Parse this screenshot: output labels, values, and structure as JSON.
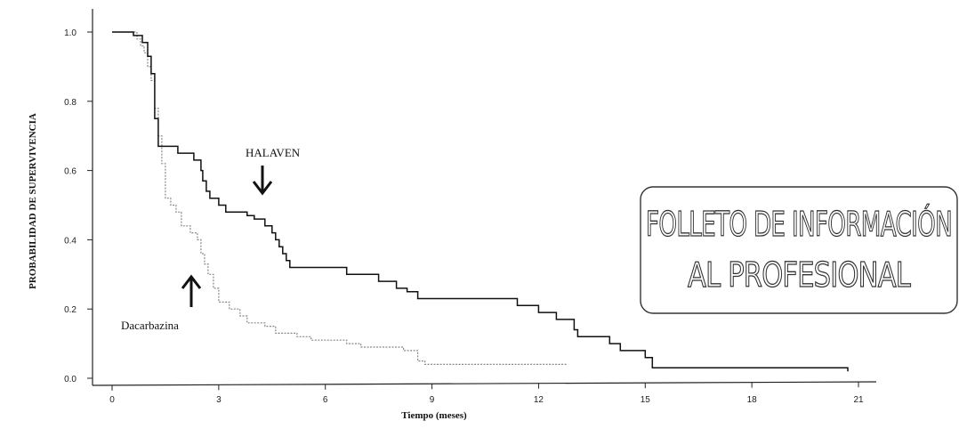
{
  "chart_data": {
    "type": "line",
    "xlabel": "Tiempo (meses)",
    "ylabel": "PROBABILIDAD DE SUPERVIVENCIA",
    "xlim": [
      0,
      21
    ],
    "ylim": [
      0,
      1
    ],
    "x_ticks": [
      0,
      3,
      6,
      9,
      12,
      15,
      18,
      21
    ],
    "y_ticks": [
      0.0,
      0.2,
      0.4,
      0.6,
      0.8,
      1.0
    ],
    "x_tick_labels": [
      "0",
      "3",
      "6",
      "9",
      "12",
      "15",
      "18",
      "21"
    ],
    "y_tick_labels": [
      "0.0",
      "0.2",
      "0.4",
      "0.6",
      "0.8",
      "1.0"
    ],
    "grid": false,
    "step": true,
    "series": [
      {
        "name": "HALAVEN",
        "color": "#111111",
        "style": "solid",
        "points": [
          [
            0,
            1.0
          ],
          [
            0.6,
            1.0
          ],
          [
            0.6,
            0.99
          ],
          [
            0.85,
            0.99
          ],
          [
            0.85,
            0.97
          ],
          [
            1.0,
            0.97
          ],
          [
            1.0,
            0.93
          ],
          [
            1.1,
            0.93
          ],
          [
            1.1,
            0.88
          ],
          [
            1.2,
            0.88
          ],
          [
            1.2,
            0.75
          ],
          [
            1.3,
            0.75
          ],
          [
            1.3,
            0.67
          ],
          [
            1.85,
            0.67
          ],
          [
            1.85,
            0.65
          ],
          [
            2.3,
            0.65
          ],
          [
            2.3,
            0.63
          ],
          [
            2.5,
            0.63
          ],
          [
            2.5,
            0.6
          ],
          [
            2.55,
            0.6
          ],
          [
            2.55,
            0.57
          ],
          [
            2.65,
            0.57
          ],
          [
            2.65,
            0.54
          ],
          [
            2.75,
            0.54
          ],
          [
            2.75,
            0.52
          ],
          [
            3.0,
            0.52
          ],
          [
            3.0,
            0.5
          ],
          [
            3.2,
            0.5
          ],
          [
            3.2,
            0.48
          ],
          [
            3.8,
            0.48
          ],
          [
            3.8,
            0.47
          ],
          [
            4.0,
            0.47
          ],
          [
            4.0,
            0.46
          ],
          [
            4.3,
            0.46
          ],
          [
            4.3,
            0.44
          ],
          [
            4.5,
            0.44
          ],
          [
            4.5,
            0.42
          ],
          [
            4.6,
            0.42
          ],
          [
            4.6,
            0.4
          ],
          [
            4.7,
            0.4
          ],
          [
            4.7,
            0.38
          ],
          [
            4.8,
            0.38
          ],
          [
            4.8,
            0.36
          ],
          [
            4.9,
            0.36
          ],
          [
            4.9,
            0.34
          ],
          [
            5.0,
            0.34
          ],
          [
            5.0,
            0.32
          ],
          [
            6.6,
            0.32
          ],
          [
            6.6,
            0.3
          ],
          [
            7.5,
            0.3
          ],
          [
            7.5,
            0.28
          ],
          [
            8.0,
            0.28
          ],
          [
            8.0,
            0.26
          ],
          [
            8.3,
            0.26
          ],
          [
            8.3,
            0.25
          ],
          [
            8.6,
            0.25
          ],
          [
            8.6,
            0.23
          ],
          [
            11.4,
            0.23
          ],
          [
            11.4,
            0.21
          ],
          [
            12.0,
            0.21
          ],
          [
            12.0,
            0.19
          ],
          [
            12.5,
            0.19
          ],
          [
            12.5,
            0.17
          ],
          [
            13.0,
            0.17
          ],
          [
            13.0,
            0.14
          ],
          [
            13.1,
            0.14
          ],
          [
            13.1,
            0.12
          ],
          [
            14.0,
            0.12
          ],
          [
            14.0,
            0.1
          ],
          [
            14.3,
            0.1
          ],
          [
            14.3,
            0.08
          ],
          [
            15.0,
            0.08
          ],
          [
            15.0,
            0.06
          ],
          [
            15.2,
            0.06
          ],
          [
            15.2,
            0.03
          ],
          [
            20.7,
            0.03
          ],
          [
            20.7,
            0.02
          ]
        ]
      },
      {
        "name": "Dacarbazina",
        "color": "#888888",
        "style": "dotted",
        "points": [
          [
            0,
            1.0
          ],
          [
            0.7,
            1.0
          ],
          [
            0.7,
            0.98
          ],
          [
            0.8,
            0.98
          ],
          [
            0.8,
            0.96
          ],
          [
            0.9,
            0.96
          ],
          [
            0.9,
            0.94
          ],
          [
            1.0,
            0.94
          ],
          [
            1.0,
            0.9
          ],
          [
            1.1,
            0.9
          ],
          [
            1.1,
            0.86
          ],
          [
            1.2,
            0.86
          ],
          [
            1.2,
            0.78
          ],
          [
            1.3,
            0.78
          ],
          [
            1.3,
            0.7
          ],
          [
            1.4,
            0.7
          ],
          [
            1.4,
            0.62
          ],
          [
            1.5,
            0.62
          ],
          [
            1.5,
            0.52
          ],
          [
            1.65,
            0.52
          ],
          [
            1.65,
            0.5
          ],
          [
            1.8,
            0.5
          ],
          [
            1.8,
            0.48
          ],
          [
            1.95,
            0.48
          ],
          [
            1.95,
            0.44
          ],
          [
            2.2,
            0.44
          ],
          [
            2.2,
            0.42
          ],
          [
            2.4,
            0.42
          ],
          [
            2.4,
            0.4
          ],
          [
            2.5,
            0.4
          ],
          [
            2.5,
            0.36
          ],
          [
            2.6,
            0.36
          ],
          [
            2.6,
            0.33
          ],
          [
            2.7,
            0.33
          ],
          [
            2.7,
            0.3
          ],
          [
            2.85,
            0.3
          ],
          [
            2.85,
            0.26
          ],
          [
            3.0,
            0.26
          ],
          [
            3.0,
            0.22
          ],
          [
            3.3,
            0.22
          ],
          [
            3.3,
            0.2
          ],
          [
            3.6,
            0.2
          ],
          [
            3.6,
            0.18
          ],
          [
            3.8,
            0.18
          ],
          [
            3.8,
            0.16
          ],
          [
            4.3,
            0.16
          ],
          [
            4.3,
            0.15
          ],
          [
            4.6,
            0.15
          ],
          [
            4.6,
            0.13
          ],
          [
            5.2,
            0.13
          ],
          [
            5.2,
            0.12
          ],
          [
            5.6,
            0.12
          ],
          [
            5.6,
            0.11
          ],
          [
            6.6,
            0.11
          ],
          [
            6.6,
            0.1
          ],
          [
            7.0,
            0.1
          ],
          [
            7.0,
            0.09
          ],
          [
            8.2,
            0.09
          ],
          [
            8.2,
            0.08
          ],
          [
            8.6,
            0.08
          ],
          [
            8.6,
            0.05
          ],
          [
            8.8,
            0.05
          ],
          [
            8.8,
            0.04
          ],
          [
            12.8,
            0.04
          ]
        ]
      }
    ],
    "annotations": [
      {
        "text": "HALAVEN",
        "arrow_to": [
          4.2,
          0.47
        ]
      },
      {
        "text": "Dacarbazina",
        "arrow_to": [
          2.2,
          0.33
        ]
      }
    ]
  },
  "stamp": {
    "line1": "FOLLETO DE INFORMACIÓN",
    "line2": "AL PROFESIONAL"
  }
}
